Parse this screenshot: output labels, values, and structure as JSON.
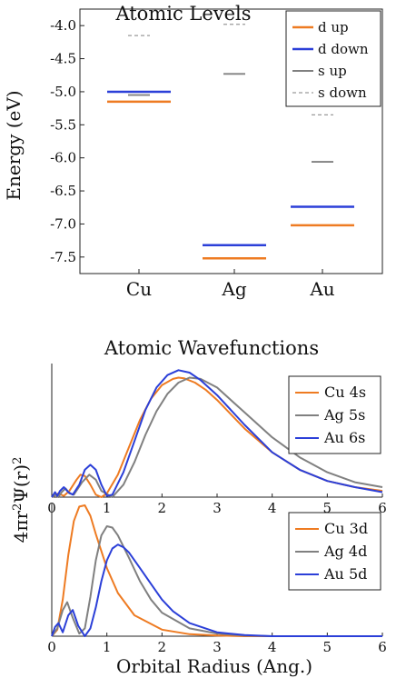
{
  "colors": {
    "orange": "#EE7B22",
    "blue": "#2B3FD8",
    "gray": "#808080",
    "dashed_gray": "#9A9A9A",
    "axis": "#222222"
  },
  "chart_data": [
    {
      "type": "levels",
      "title": "Atomic Levels",
      "xlabel": "",
      "ylabel": "Energy (eV)",
      "ylim": [
        -7.75,
        -3.75
      ],
      "yticks": [
        -4.0,
        -4.5,
        -5.0,
        -5.5,
        -6.0,
        -6.5,
        -7.0,
        -7.5
      ],
      "yticklabels": [
        "-4.0",
        "-4.5",
        "-5.0",
        "-5.5",
        "-6.0",
        "-6.5",
        "-7.0",
        "-7.5"
      ],
      "categories": [
        "Cu",
        "Ag",
        "Au"
      ],
      "series": [
        {
          "name": "d up",
          "color": "#EE7B22",
          "style": "solid",
          "values": [
            -5.15,
            -7.52,
            -7.02
          ]
        },
        {
          "name": "d down",
          "color": "#2B3FD8",
          "style": "solid",
          "values": [
            -5.0,
            -7.32,
            -6.74
          ]
        },
        {
          "name": "s up",
          "color": "#808080",
          "style": "solid",
          "values": [
            -5.05,
            -4.73,
            -6.06
          ]
        },
        {
          "name": "s down",
          "color": "#9A9A9A",
          "style": "dashed",
          "values": [
            -4.15,
            -3.98,
            -5.35
          ]
        }
      ],
      "legend_position": "top-right"
    },
    {
      "type": "line",
      "title": "Atomic Wavefunctions",
      "xlabel": "",
      "ylabel": "4πr²Ψ(r)²",
      "xlim": [
        0,
        6
      ],
      "xticks": [
        0,
        1,
        2,
        3,
        4,
        5,
        6
      ],
      "xticklabels": [
        "0",
        "1",
        "2",
        "3",
        "4",
        "5",
        "6"
      ],
      "series": [
        {
          "name": "Cu 4s",
          "color": "#EE7B22",
          "x": [
            0,
            0.12,
            0.22,
            0.32,
            0.45,
            0.52,
            0.6,
            0.7,
            0.8,
            0.9,
            1.0,
            1.2,
            1.4,
            1.6,
            1.8,
            2.0,
            2.2,
            2.3,
            2.4,
            2.6,
            2.8,
            3.0,
            3.5,
            4.0,
            4.5,
            5.0,
            5.5,
            6.0
          ],
          "y": [
            0,
            0.03,
            0.01,
            0.05,
            0.14,
            0.18,
            0.17,
            0.1,
            0.02,
            0.0,
            0.03,
            0.18,
            0.4,
            0.62,
            0.79,
            0.9,
            0.95,
            0.96,
            0.955,
            0.92,
            0.86,
            0.78,
            0.55,
            0.36,
            0.22,
            0.13,
            0.08,
            0.05
          ]
        },
        {
          "name": "Ag 5s",
          "color": "#808080",
          "x": [
            0,
            0.08,
            0.12,
            0.18,
            0.25,
            0.32,
            0.4,
            0.55,
            0.68,
            0.8,
            0.9,
            1.1,
            1.3,
            1.5,
            1.7,
            1.9,
            2.1,
            2.3,
            2.5,
            2.7,
            3.0,
            3.5,
            4.0,
            4.5,
            5.0,
            5.5,
            6.0
          ],
          "y": [
            0,
            0.02,
            0.0,
            0.04,
            0.07,
            0.03,
            0.02,
            0.12,
            0.18,
            0.14,
            0.05,
            0.0,
            0.1,
            0.28,
            0.5,
            0.69,
            0.83,
            0.92,
            0.96,
            0.95,
            0.88,
            0.68,
            0.48,
            0.32,
            0.2,
            0.12,
            0.08
          ]
        },
        {
          "name": "Au 6s",
          "color": "#2B3FD8",
          "x": [
            0,
            0.06,
            0.1,
            0.15,
            0.22,
            0.3,
            0.38,
            0.5,
            0.6,
            0.7,
            0.8,
            0.9,
            1.0,
            1.1,
            1.3,
            1.5,
            1.7,
            1.9,
            2.1,
            2.3,
            2.5,
            2.7,
            3.0,
            3.5,
            4.0,
            4.5,
            5.0,
            5.5,
            6.0
          ],
          "y": [
            0,
            0.04,
            0.01,
            0.05,
            0.08,
            0.04,
            0.02,
            0.1,
            0.22,
            0.26,
            0.22,
            0.1,
            0.01,
            0.02,
            0.2,
            0.45,
            0.7,
            0.88,
            0.98,
            1.02,
            1.0,
            0.94,
            0.82,
            0.58,
            0.36,
            0.22,
            0.13,
            0.08,
            0.04
          ]
        }
      ],
      "legend_position": "top-right"
    },
    {
      "type": "line",
      "title": "",
      "xlabel": "Orbital Radius (Ang.)",
      "ylabel": "4πr²Ψ(r)²",
      "xlim": [
        0,
        6
      ],
      "xticks": [
        0,
        1,
        2,
        3,
        4,
        5,
        6
      ],
      "xticklabels": [
        "0",
        "1",
        "2",
        "3",
        "4",
        "5",
        "6"
      ],
      "series": [
        {
          "name": "Cu 3d",
          "color": "#EE7B22",
          "x": [
            0,
            0.1,
            0.2,
            0.3,
            0.4,
            0.5,
            0.6,
            0.7,
            0.8,
            1.0,
            1.2,
            1.5,
            2.0,
            2.5,
            3.0,
            3.5,
            4.0,
            5.0,
            6.0
          ],
          "y": [
            0,
            0.05,
            0.28,
            0.62,
            0.88,
            0.99,
            1.0,
            0.92,
            0.78,
            0.52,
            0.33,
            0.16,
            0.05,
            0.015,
            0.005,
            0.0,
            0.0,
            0.0,
            0.0
          ]
        },
        {
          "name": "Ag 4d",
          "color": "#808080",
          "x": [
            0,
            0.1,
            0.2,
            0.28,
            0.38,
            0.5,
            0.6,
            0.7,
            0.8,
            0.9,
            1.0,
            1.1,
            1.2,
            1.4,
            1.6,
            1.8,
            2.0,
            2.5,
            3.0,
            3.5,
            4.0,
            5.0,
            6.0
          ],
          "y": [
            0,
            0.06,
            0.2,
            0.26,
            0.14,
            0.02,
            0.06,
            0.3,
            0.58,
            0.77,
            0.84,
            0.83,
            0.77,
            0.6,
            0.42,
            0.28,
            0.18,
            0.06,
            0.02,
            0.005,
            0.0,
            0.0,
            0.0
          ]
        },
        {
          "name": "Au 5d",
          "color": "#2B3FD8",
          "x": [
            0,
            0.06,
            0.12,
            0.2,
            0.3,
            0.38,
            0.48,
            0.6,
            0.7,
            0.8,
            0.9,
            1.0,
            1.1,
            1.2,
            1.3,
            1.4,
            1.6,
            1.8,
            2.0,
            2.2,
            2.5,
            3.0,
            3.5,
            4.0,
            5.0,
            6.0
          ],
          "y": [
            0,
            0.07,
            0.1,
            0.03,
            0.16,
            0.2,
            0.08,
            0.0,
            0.06,
            0.22,
            0.42,
            0.58,
            0.67,
            0.7,
            0.68,
            0.64,
            0.52,
            0.4,
            0.28,
            0.19,
            0.1,
            0.03,
            0.008,
            0.0,
            0.0,
            0.0
          ]
        }
      ],
      "legend_position": "top-right"
    }
  ]
}
